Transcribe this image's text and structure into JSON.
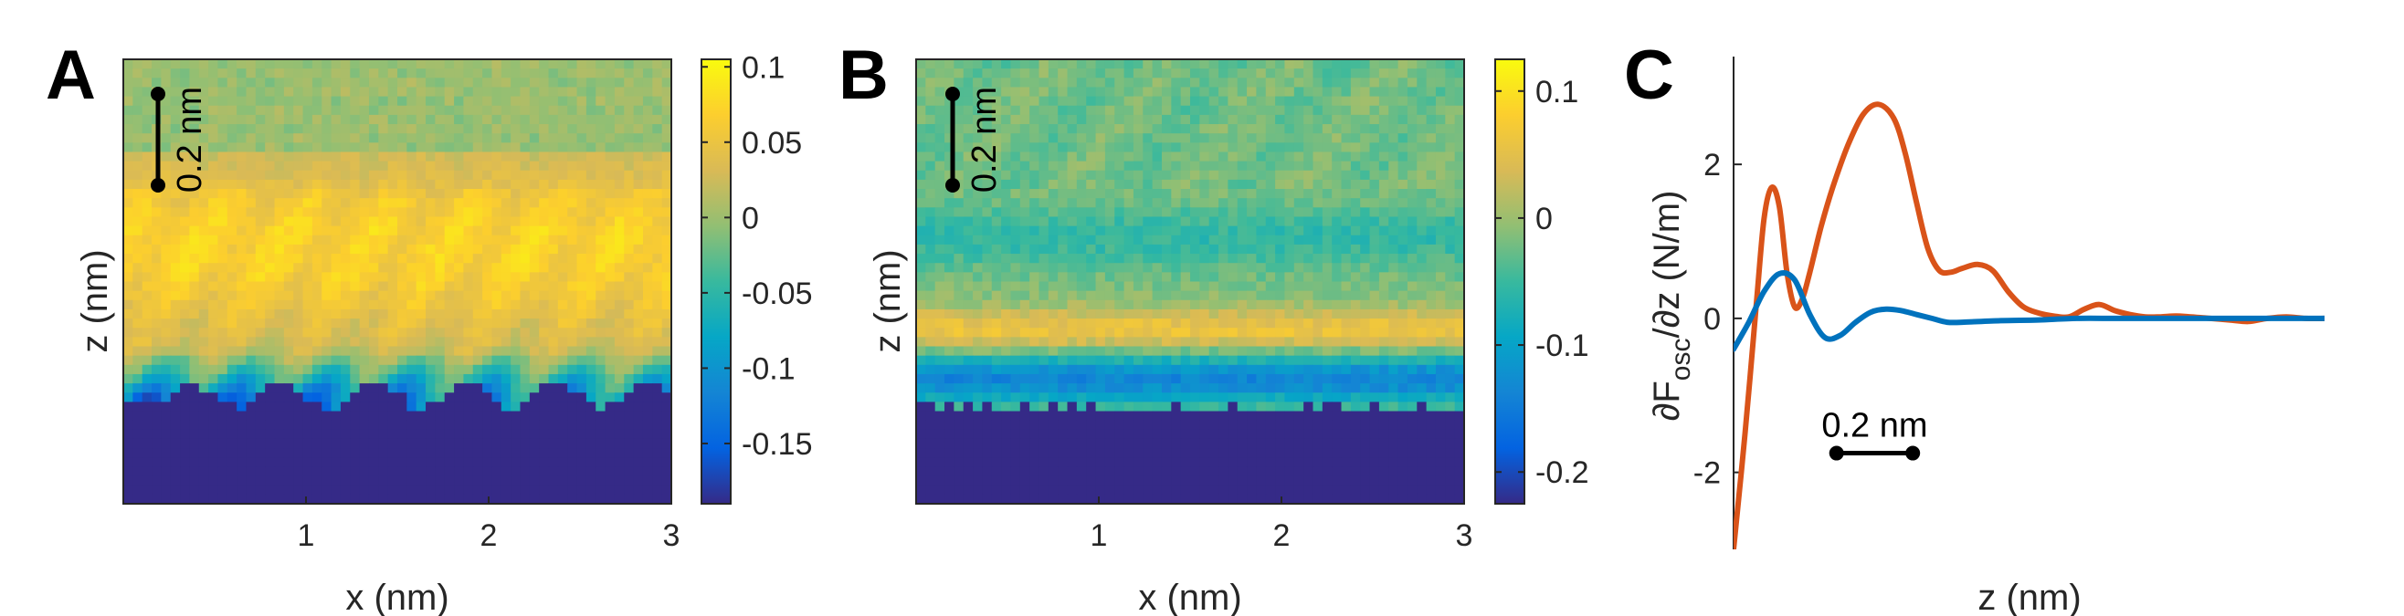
{
  "colors": {
    "floor": "#352A87",
    "series_orange": "#D95319",
    "series_blue": "#0072BD"
  },
  "chart_data": [
    {
      "id": "A",
      "type": "heatmap",
      "panel_letter": "A",
      "title": "",
      "xlabel": "x (nm)",
      "ylabel": "z (nm)",
      "xlim": [
        0,
        3
      ],
      "x_ticks": [
        "1",
        "2",
        "3"
      ],
      "x_tick_values": [
        1,
        2,
        3
      ],
      "colorbar": {
        "range": [
          -0.19,
          0.105
        ],
        "tick_values": [
          0.1,
          0.05,
          0,
          -0.05,
          -0.1,
          -0.15
        ],
        "tick_labels": [
          "0.1",
          "0.05",
          "0",
          "-0.05",
          "-0.1",
          "-0.15"
        ]
      },
      "scale_bar": {
        "label": "0.2 nm",
        "orientation": "vertical"
      },
      "pattern": "diagonal-stripes"
    },
    {
      "id": "B",
      "type": "heatmap",
      "panel_letter": "B",
      "title": "",
      "xlabel": "x (nm)",
      "ylabel": "z (nm)",
      "xlim": [
        0,
        3
      ],
      "x_ticks": [
        "1",
        "2",
        "3"
      ],
      "x_tick_values": [
        1,
        2,
        3
      ],
      "colorbar": {
        "range": [
          -0.225,
          0.125
        ],
        "tick_values": [
          0.1,
          0,
          -0.1,
          -0.2
        ],
        "tick_labels": [
          "0.1",
          "0",
          "-0.1",
          "-0.2"
        ]
      },
      "scale_bar": {
        "label": "0.2 nm",
        "orientation": "vertical"
      },
      "pattern": "horizontal-layers"
    },
    {
      "id": "C",
      "type": "line",
      "panel_letter": "C",
      "title": "",
      "xlabel": "z (nm)",
      "ylabel_main": "∂F",
      "ylabel_sub": "osc",
      "ylabel_tail": "/∂z (N/m)",
      "ylim": [
        -3,
        3.4
      ],
      "xlim": [
        0,
        1.55
      ],
      "y_ticks": [
        "-2",
        "0",
        "2"
      ],
      "y_tick_values": [
        -2,
        0,
        2
      ],
      "scale_bar": {
        "label": "0.2 nm",
        "orientation": "horizontal",
        "from": 0.27,
        "to": 0.47
      },
      "series": [
        {
          "color": "#D95319",
          "x": [
            0.0,
            0.03,
            0.06,
            0.08,
            0.1,
            0.12,
            0.14,
            0.16,
            0.18,
            0.2,
            0.23,
            0.26,
            0.3,
            0.34,
            0.38,
            0.42,
            0.45,
            0.48,
            0.51,
            0.54,
            0.57,
            0.6,
            0.64,
            0.68,
            0.72,
            0.76,
            0.8,
            0.84,
            0.88,
            0.92,
            0.96,
            1.0,
            1.04,
            1.08,
            1.12,
            1.16,
            1.2,
            1.25,
            1.3,
            1.35,
            1.4,
            1.45,
            1.5,
            1.55
          ],
          "y": [
            -3.0,
            -1.5,
            0.2,
            1.3,
            1.7,
            1.45,
            0.6,
            0.15,
            0.25,
            0.6,
            1.2,
            1.7,
            2.25,
            2.65,
            2.78,
            2.6,
            2.15,
            1.5,
            0.9,
            0.62,
            0.6,
            0.65,
            0.7,
            0.62,
            0.35,
            0.15,
            0.07,
            0.03,
            0.02,
            0.12,
            0.18,
            0.1,
            0.05,
            0.02,
            0.02,
            0.03,
            0.02,
            0.0,
            -0.02,
            -0.04,
            0.0,
            0.02,
            0.0,
            0.0
          ]
        },
        {
          "color": "#0072BD",
          "x": [
            0.0,
            0.04,
            0.08,
            0.12,
            0.16,
            0.2,
            0.24,
            0.28,
            0.32,
            0.36,
            0.4,
            0.44,
            0.48,
            0.52,
            0.56,
            0.6,
            0.7,
            0.8,
            0.9,
            1.0,
            1.1,
            1.2,
            1.3,
            1.4,
            1.5,
            1.55
          ],
          "y": [
            -0.4,
            -0.05,
            0.35,
            0.58,
            0.5,
            0.05,
            -0.25,
            -0.22,
            -0.05,
            0.08,
            0.12,
            0.1,
            0.05,
            0.0,
            -0.05,
            -0.05,
            -0.03,
            -0.02,
            0.0,
            0.0,
            0.0,
            0.0,
            0.0,
            0.0,
            0.0,
            0.0
          ]
        }
      ]
    }
  ]
}
